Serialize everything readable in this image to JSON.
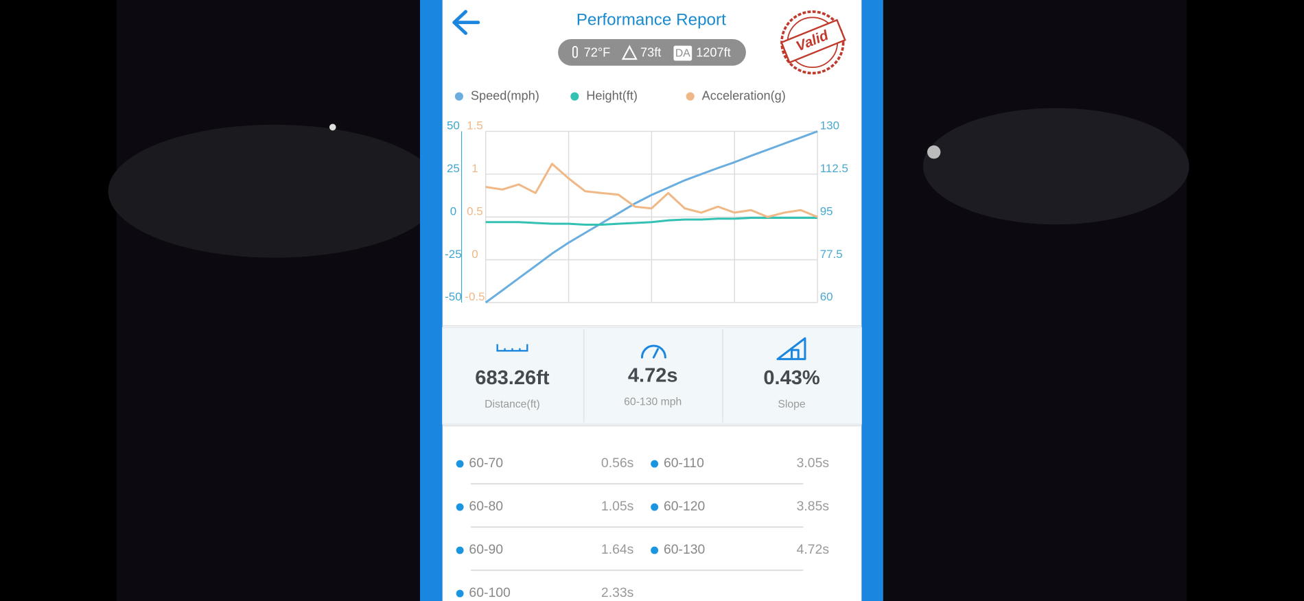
{
  "header": {
    "title": "Performance Report",
    "stamp": "Valid"
  },
  "conditions": {
    "temperature": "72°F",
    "altitude": "73ft",
    "density_altitude_label": "DA",
    "density_altitude": "1207ft"
  },
  "chart_data": {
    "type": "line",
    "categories": [
      null,
      null,
      null,
      null,
      null,
      null,
      null,
      null,
      null,
      null,
      null,
      null,
      null,
      null,
      null,
      null,
      null,
      null,
      null,
      null,
      null
    ],
    "series": [
      {
        "name": "Speed(mph)",
        "color": "#6aaee0",
        "axis": "y3",
        "values": [
          60,
          65,
          70,
          75,
          80,
          84.5,
          88.5,
          92.5,
          96.5,
          100.5,
          104,
          107,
          110,
          112.5,
          115,
          117.4,
          120,
          122.5,
          125,
          127.5,
          130
        ]
      },
      {
        "name": "Height(ft)",
        "color": "#33c1b3",
        "axis": "y",
        "values": [
          -3,
          -3,
          -3,
          -3.5,
          -4,
          -4,
          -4.5,
          -4.5,
          -4,
          -3.5,
          -3,
          -2,
          -1.5,
          -1.5,
          -1,
          -1,
          -0.5,
          -0.5,
          -0.5,
          -0.5,
          -0.5
        ]
      },
      {
        "name": "Acceleration(g)",
        "color": "#f0b887",
        "axis": "y2",
        "values": [
          0.85,
          0.82,
          0.88,
          0.78,
          1.12,
          0.95,
          0.8,
          0.78,
          0.76,
          0.62,
          0.6,
          0.78,
          0.6,
          0.55,
          0.62,
          0.55,
          0.58,
          0.5,
          0.55,
          0.58,
          0.5
        ]
      }
    ],
    "ylim": [
      -50,
      50
    ],
    "yticks": [
      -50,
      -25,
      0,
      25,
      50
    ],
    "y2lim": [
      -0.5,
      1.5
    ],
    "y2ticks": [
      -0.5,
      0,
      0.5,
      1,
      1.5
    ],
    "y3lim": [
      60,
      130
    ],
    "y3ticks": [
      60,
      77.5,
      95,
      112.5,
      130
    ],
    "grid": true
  },
  "stats": [
    {
      "value": "683.26ft",
      "label": "Distance(ft)"
    },
    {
      "value": "4.72s",
      "label": "60-130 mph"
    },
    {
      "value": "0.43%",
      "label": "Slope"
    }
  ],
  "splits": [
    {
      "label": "60-70",
      "time": "0.56s"
    },
    {
      "label": "60-110",
      "time": "3.05s"
    },
    {
      "label": "60-80",
      "time": "1.05s"
    },
    {
      "label": "60-120",
      "time": "3.85s"
    },
    {
      "label": "60-90",
      "time": "1.64s"
    },
    {
      "label": "60-130",
      "time": "4.72s"
    },
    {
      "label": "60-100",
      "time": "2.33s"
    }
  ]
}
